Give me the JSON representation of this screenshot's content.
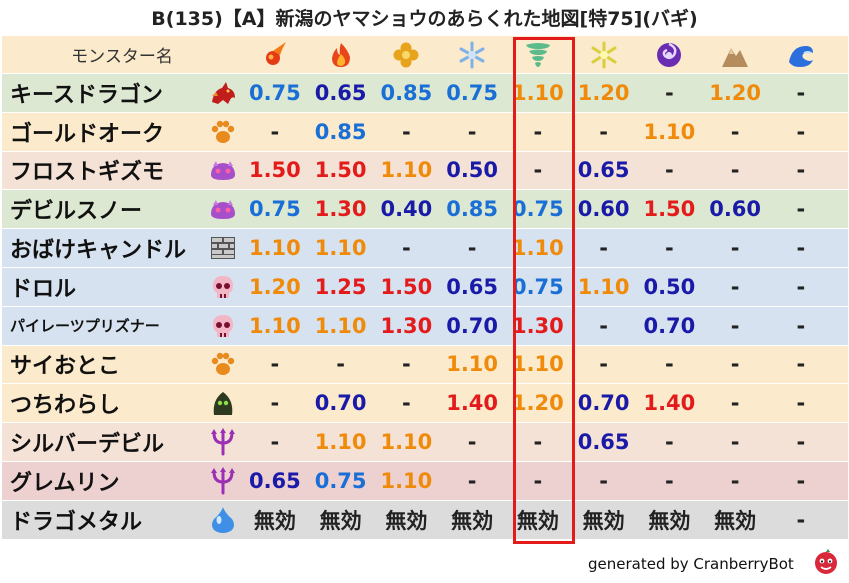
{
  "title": "B(135)【A】新潟のヤマショウのあらくれた地図[特75](バギ)",
  "header": {
    "name_label": "モンスター名",
    "elements": [
      {
        "icon": "fire-ball-icon"
      },
      {
        "icon": "flame-icon"
      },
      {
        "icon": "explosion-icon"
      },
      {
        "icon": "ice-crystal-icon"
      },
      {
        "icon": "tornado-icon"
      },
      {
        "icon": "lightning-icon"
      },
      {
        "icon": "dark-swirl-icon"
      },
      {
        "icon": "rock-mountain-icon"
      },
      {
        "icon": "water-wave-icon"
      }
    ]
  },
  "colors": {
    "blue": "#1a6fd6",
    "navy": "#1a1aa8",
    "orange": "#f08a0a",
    "red": "#e31b1b",
    "dark": "#222222",
    "highlight": "#e31b1b"
  },
  "rows": [
    {
      "name": "キースドラゴン",
      "icon": "red-dragon-icon",
      "bg": "#dde8d2",
      "small": false,
      "cells": [
        [
          "0.75",
          "blue"
        ],
        [
          "0.65",
          "navy"
        ],
        [
          "0.85",
          "blue"
        ],
        [
          "0.75",
          "blue"
        ],
        [
          "1.10",
          "orange"
        ],
        [
          "1.20",
          "orange"
        ],
        [
          "-",
          "dark"
        ],
        [
          "1.20",
          "orange"
        ],
        [
          "-",
          "dark"
        ]
      ]
    },
    {
      "name": "ゴールドオーク",
      "icon": "beast-paw-icon",
      "bg": "#fbeacb",
      "small": false,
      "cells": [
        [
          "-",
          "dark"
        ],
        [
          "0.85",
          "blue"
        ],
        [
          "-",
          "dark"
        ],
        [
          "-",
          "dark"
        ],
        [
          "-",
          "dark"
        ],
        [
          "-",
          "dark"
        ],
        [
          "1.10",
          "orange"
        ],
        [
          "-",
          "dark"
        ],
        [
          "-",
          "dark"
        ]
      ]
    },
    {
      "name": "フロストギズモ",
      "icon": "purple-slime-icon",
      "bg": "#f5e2d6",
      "small": false,
      "cells": [
        [
          "1.50",
          "red"
        ],
        [
          "1.50",
          "red"
        ],
        [
          "1.10",
          "orange"
        ],
        [
          "0.50",
          "navy"
        ],
        [
          "-",
          "dark"
        ],
        [
          "0.65",
          "navy"
        ],
        [
          "-",
          "dark"
        ],
        [
          "-",
          "dark"
        ],
        [
          "-",
          "dark"
        ]
      ]
    },
    {
      "name": "デビルスノー",
      "icon": "purple-slime-icon",
      "bg": "#dde8d2",
      "small": false,
      "cells": [
        [
          "0.75",
          "blue"
        ],
        [
          "1.30",
          "red"
        ],
        [
          "0.40",
          "navy"
        ],
        [
          "0.85",
          "blue"
        ],
        [
          "0.75",
          "blue"
        ],
        [
          "0.60",
          "navy"
        ],
        [
          "1.50",
          "red"
        ],
        [
          "0.60",
          "navy"
        ],
        [
          "-",
          "dark"
        ]
      ]
    },
    {
      "name": "おばけキャンドル",
      "icon": "brick-block-icon",
      "bg": "#d6e2ef",
      "small": false,
      "cells": [
        [
          "1.10",
          "orange"
        ],
        [
          "1.10",
          "orange"
        ],
        [
          "-",
          "dark"
        ],
        [
          "-",
          "dark"
        ],
        [
          "1.10",
          "orange"
        ],
        [
          "-",
          "dark"
        ],
        [
          "-",
          "dark"
        ],
        [
          "-",
          "dark"
        ],
        [
          "-",
          "dark"
        ]
      ]
    },
    {
      "name": "ドロル",
      "icon": "pink-skull-icon",
      "bg": "#d6e2ef",
      "small": false,
      "cells": [
        [
          "1.20",
          "orange"
        ],
        [
          "1.25",
          "red"
        ],
        [
          "1.50",
          "red"
        ],
        [
          "0.65",
          "navy"
        ],
        [
          "0.75",
          "blue"
        ],
        [
          "1.10",
          "orange"
        ],
        [
          "0.50",
          "navy"
        ],
        [
          "-",
          "dark"
        ],
        [
          "-",
          "dark"
        ]
      ]
    },
    {
      "name": "パイレーツプリズナー",
      "icon": "pink-skull-icon",
      "bg": "#d6e2ef",
      "small": true,
      "cells": [
        [
          "1.10",
          "orange"
        ],
        [
          "1.10",
          "orange"
        ],
        [
          "1.30",
          "red"
        ],
        [
          "0.70",
          "navy"
        ],
        [
          "1.30",
          "red"
        ],
        [
          "-",
          "dark"
        ],
        [
          "0.70",
          "navy"
        ],
        [
          "-",
          "dark"
        ],
        [
          "-",
          "dark"
        ]
      ]
    },
    {
      "name": "サイおとこ",
      "icon": "beast-paw-icon",
      "bg": "#fbeacb",
      "small": false,
      "cells": [
        [
          "-",
          "dark"
        ],
        [
          "-",
          "dark"
        ],
        [
          "-",
          "dark"
        ],
        [
          "1.10",
          "orange"
        ],
        [
          "1.10",
          "orange"
        ],
        [
          "-",
          "dark"
        ],
        [
          "-",
          "dark"
        ],
        [
          "-",
          "dark"
        ],
        [
          "-",
          "dark"
        ]
      ]
    },
    {
      "name": "つちわらし",
      "icon": "green-ghost-icon",
      "bg": "#fbeacb",
      "small": false,
      "cells": [
        [
          "-",
          "dark"
        ],
        [
          "0.70",
          "navy"
        ],
        [
          "-",
          "dark"
        ],
        [
          "1.40",
          "red"
        ],
        [
          "1.20",
          "orange"
        ],
        [
          "0.70",
          "navy"
        ],
        [
          "1.40",
          "red"
        ],
        [
          "-",
          "dark"
        ],
        [
          "-",
          "dark"
        ]
      ]
    },
    {
      "name": "シルバーデビル",
      "icon": "purple-trident-icon",
      "bg": "#f5e2d6",
      "small": false,
      "cells": [
        [
          "-",
          "dark"
        ],
        [
          "1.10",
          "orange"
        ],
        [
          "1.10",
          "orange"
        ],
        [
          "-",
          "dark"
        ],
        [
          "-",
          "dark"
        ],
        [
          "0.65",
          "navy"
        ],
        [
          "-",
          "dark"
        ],
        [
          "-",
          "dark"
        ],
        [
          "-",
          "dark"
        ]
      ]
    },
    {
      "name": "グレムリン",
      "icon": "purple-trident-icon",
      "bg": "#edd0d0",
      "small": false,
      "cells": [
        [
          "0.65",
          "navy"
        ],
        [
          "0.75",
          "blue"
        ],
        [
          "1.10",
          "orange"
        ],
        [
          "-",
          "dark"
        ],
        [
          "-",
          "dark"
        ],
        [
          "-",
          "dark"
        ],
        [
          "-",
          "dark"
        ],
        [
          "-",
          "dark"
        ],
        [
          "-",
          "dark"
        ]
      ]
    },
    {
      "name": "ドラゴメタル",
      "icon": "metal-slime-icon",
      "bg": "#dcdcdc",
      "small": false,
      "cells": [
        [
          "無効",
          "dark"
        ],
        [
          "無効",
          "dark"
        ],
        [
          "無効",
          "dark"
        ],
        [
          "無効",
          "dark"
        ],
        [
          "無効",
          "dark"
        ],
        [
          "無効",
          "dark"
        ],
        [
          "無効",
          "dark"
        ],
        [
          "無効",
          "dark"
        ],
        [
          "-",
          "dark"
        ]
      ]
    }
  ],
  "footer": {
    "text": "generated by CranberryBot",
    "logo": "cranberry-logo-icon"
  }
}
